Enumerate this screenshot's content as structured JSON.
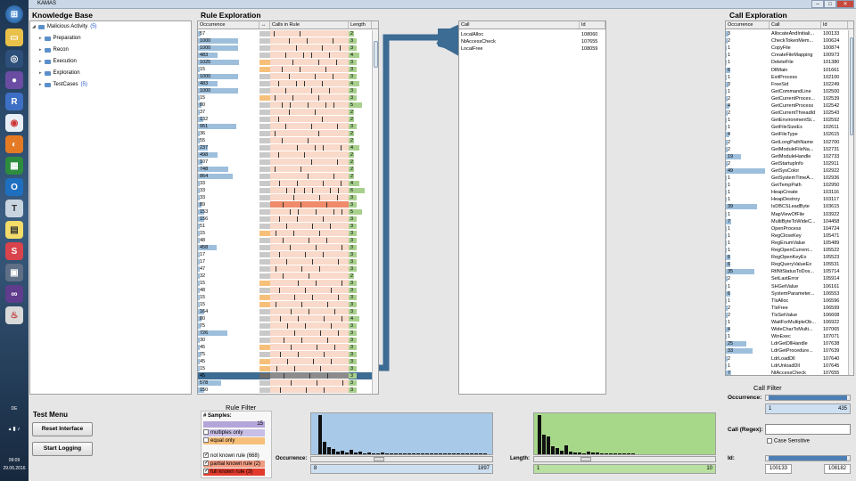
{
  "window": {
    "title": "KAMAS"
  },
  "taskbar": {
    "lang": "DE",
    "time": "09:09",
    "date": "29.06.2016"
  },
  "knowledge_base": {
    "title": "Knowledge Base",
    "root": {
      "label": "Malicious Activity",
      "count": "(5)"
    },
    "children": [
      {
        "label": "Preparation"
      },
      {
        "label": "Recon"
      },
      {
        "label": "Execution"
      },
      {
        "label": "Exploration"
      },
      {
        "label": "TestCases",
        "count": "(5)"
      }
    ]
  },
  "test_menu": {
    "title": "Test Menu",
    "reset": "Reset Interface",
    "start": "Start Logging"
  },
  "rule_exploration": {
    "title": "Rule Exploration",
    "columns": {
      "occurrence": "Occurrence",
      "arrows": "↔",
      "calls": "Calls in Rule",
      "length": "Length"
    },
    "rows": [
      {
        "occ": "57",
        "len": "2"
      },
      {
        "occ": "1000",
        "len": "3"
      },
      {
        "occ": "1000",
        "len": "3"
      },
      {
        "occ": "483",
        "len": "4"
      },
      {
        "occ": "1025",
        "len": "3"
      },
      {
        "occ": "15",
        "len": "3"
      },
      {
        "occ": "1000",
        "len": "3"
      },
      {
        "occ": "483",
        "len": "4"
      },
      {
        "occ": "1000",
        "len": "3"
      },
      {
        "occ": "15",
        "len": "3"
      },
      {
        "occ": "80",
        "len": "5"
      },
      {
        "occ": "37",
        "len": "2"
      },
      {
        "occ": "132",
        "len": "2"
      },
      {
        "occ": "951",
        "len": "3"
      },
      {
        "occ": "36",
        "len": "2"
      },
      {
        "occ": "55",
        "len": "2"
      },
      {
        "occ": "237",
        "len": "4"
      },
      {
        "occ": "498",
        "len": "2"
      },
      {
        "occ": "107",
        "len": "2"
      },
      {
        "occ": "748",
        "len": "2"
      },
      {
        "occ": "864",
        "len": "2"
      },
      {
        "occ": "33",
        "len": "4"
      },
      {
        "occ": "33",
        "len": "6"
      },
      {
        "occ": "33",
        "len": "3"
      },
      {
        "occ": "89",
        "len": "3"
      },
      {
        "occ": "153",
        "len": "5"
      },
      {
        "occ": "156",
        "len": "3"
      },
      {
        "occ": "51",
        "len": "3"
      },
      {
        "occ": "15",
        "len": "3"
      },
      {
        "occ": "48",
        "len": "3"
      },
      {
        "occ": "458",
        "len": "3"
      },
      {
        "occ": "17",
        "len": "3"
      },
      {
        "occ": "17",
        "len": "3"
      },
      {
        "occ": "47",
        "len": "3"
      },
      {
        "occ": "32",
        "len": "2"
      },
      {
        "occ": "15",
        "len": "3"
      },
      {
        "occ": "48",
        "len": "3"
      },
      {
        "occ": "15",
        "len": "3"
      },
      {
        "occ": "15",
        "len": "3"
      },
      {
        "occ": "164",
        "len": "3"
      },
      {
        "occ": "80",
        "len": "4"
      },
      {
        "occ": "75",
        "len": "3"
      },
      {
        "occ": "726",
        "len": "3"
      },
      {
        "occ": "30",
        "len": "3"
      },
      {
        "occ": "45",
        "len": "3"
      },
      {
        "occ": "75",
        "len": "3"
      },
      {
        "occ": "45",
        "len": "3"
      },
      {
        "occ": "15",
        "len": "3"
      },
      {
        "occ": "45",
        "len": "3"
      },
      {
        "occ": "578",
        "len": "3"
      },
      {
        "occ": "150",
        "len": "3"
      }
    ]
  },
  "selected_rule": {
    "columns": {
      "call": "Call",
      "id": "Id"
    },
    "rows": [
      {
        "call": "LocalAlloc",
        "id": "108060"
      },
      {
        "call": "NtAccessCheck",
        "id": "107655"
      },
      {
        "call": "LocalFree",
        "id": "108059"
      }
    ]
  },
  "call_exploration": {
    "title": "Call Exploration",
    "columns": {
      "occurrence": "Occurrence",
      "call": "Call",
      "id": "Id"
    },
    "rows": [
      {
        "occ": "3",
        "call": "AllocateAndInitiali...",
        "id": "100133"
      },
      {
        "occ": "2",
        "call": "CheckTokenMem...",
        "id": "100624"
      },
      {
        "occ": "1",
        "call": "CopyFile",
        "id": "100874"
      },
      {
        "occ": "1",
        "call": "CreateFileMapping",
        "id": "100973"
      },
      {
        "occ": "1",
        "call": "DeleteFile",
        "id": "101380"
      },
      {
        "occ": "6",
        "call": "DllMain",
        "id": "101661"
      },
      {
        "occ": "1",
        "call": "ExitProcess",
        "id": "102100"
      },
      {
        "occ": "3",
        "call": "FreeSid",
        "id": "102249"
      },
      {
        "occ": "1",
        "call": "GetCommandLine",
        "id": "102500"
      },
      {
        "occ": "2",
        "call": "GetCurrentProces...",
        "id": "102539"
      },
      {
        "occ": "4",
        "call": "GetCurrentProcess",
        "id": "102542"
      },
      {
        "occ": "2",
        "call": "GetCurrentThreadId",
        "id": "102543"
      },
      {
        "occ": "1",
        "call": "GetEnvironmentSt...",
        "id": "102592"
      },
      {
        "occ": "1",
        "call": "GetFileSizeEx",
        "id": "102611"
      },
      {
        "occ": "4",
        "call": "GetFileType",
        "id": "102615"
      },
      {
        "occ": "2",
        "call": "GetLongPathName",
        "id": "102700"
      },
      {
        "occ": "2",
        "call": "GetModuleFileNa...",
        "id": "102731"
      },
      {
        "occ": "19",
        "call": "GetModuleHandle",
        "id": "102733"
      },
      {
        "occ": "2",
        "call": "GetStartupInfo",
        "id": "102911"
      },
      {
        "occ": "49",
        "call": "GetSysColor",
        "id": "102922"
      },
      {
        "occ": "1",
        "call": "GetSystemTimeA...",
        "id": "102936"
      },
      {
        "occ": "1",
        "call": "GetTempPath",
        "id": "102950"
      },
      {
        "occ": "1",
        "call": "HeapCreate",
        "id": "103116"
      },
      {
        "occ": "1",
        "call": "HeapDestroy",
        "id": "103117"
      },
      {
        "occ": "39",
        "call": "IsDBCSLeadByte",
        "id": "103615"
      },
      {
        "occ": "1",
        "call": "MapViewOfFile",
        "id": "103922"
      },
      {
        "occ": "7",
        "call": "MultiByteToWideC...",
        "id": "104458"
      },
      {
        "occ": "1",
        "call": "OpenProcess",
        "id": "104724"
      },
      {
        "occ": "1",
        "call": "RegCloseKey",
        "id": "105471"
      },
      {
        "occ": "1",
        "call": "RegEnumValue",
        "id": "105489"
      },
      {
        "occ": "1",
        "call": "RegOpenCurrent...",
        "id": "105522"
      },
      {
        "occ": "6",
        "call": "RegOpenKeyEx",
        "id": "105523"
      },
      {
        "occ": "6",
        "call": "RegQueryValueEx",
        "id": "105531"
      },
      {
        "occ": "35",
        "call": "RtlNtStatusToDos...",
        "id": "105714"
      },
      {
        "occ": "2",
        "call": "SetLastError",
        "id": "105914"
      },
      {
        "occ": "1",
        "call": "SHGetValue",
        "id": "106161"
      },
      {
        "occ": "6",
        "call": "SystemParameter...",
        "id": "106553"
      },
      {
        "occ": "1",
        "call": "TlsAlloc",
        "id": "106596"
      },
      {
        "occ": "2",
        "call": "TlsFree",
        "id": "106599"
      },
      {
        "occ": "2",
        "call": "TlsSetValue",
        "id": "106608"
      },
      {
        "occ": "1",
        "call": "WaitForMultipleOb...",
        "id": "106922"
      },
      {
        "occ": "4",
        "call": "WideCharToMulti...",
        "id": "107065"
      },
      {
        "occ": "1",
        "call": "WinExec",
        "id": "107071"
      },
      {
        "occ": "25",
        "call": "LdrGetDllHandle",
        "id": "107638"
      },
      {
        "occ": "33",
        "call": "LdrGetProcedure...",
        "id": "107639"
      },
      {
        "occ": "2",
        "call": "LdrLoadDll",
        "id": "107640"
      },
      {
        "occ": "1",
        "call": "LdrUnloadDll",
        "id": "107645"
      },
      {
        "occ": "7",
        "call": "NtAccessCheck",
        "id": "107655"
      }
    ]
  },
  "call_filter": {
    "title": "Call Filter",
    "occurrence_label": "Occurrence:",
    "occ_min": "1",
    "occ_max": "435",
    "regex_label": "Call (Regex):",
    "regex_value": "",
    "case_sensitive": "Case Sensitive",
    "id_label": "Id:",
    "id_min": "100133",
    "id_max": "108182"
  },
  "rule_filter": {
    "title": "Rule Filter",
    "samples_label": "# Samples:",
    "samples_value": "15",
    "multiples": "multiples only",
    "equal": "equal only",
    "not_known": "not known rule (668)",
    "partial_known": "partial known rule (2)",
    "full_known": "full known rule (3)",
    "occurrence_label": "Occurrence:",
    "occ_min": "8",
    "occ_max": "1897",
    "length_label": "Length:",
    "len_min": "1",
    "len_max": "10"
  },
  "colors": {
    "accent": "#2f5f86",
    "occurrence_bar": "#9dbfdc",
    "calls_bg": "#f9d9c9",
    "length_bar": "#a8d08d",
    "selected": "#3c6b93"
  }
}
